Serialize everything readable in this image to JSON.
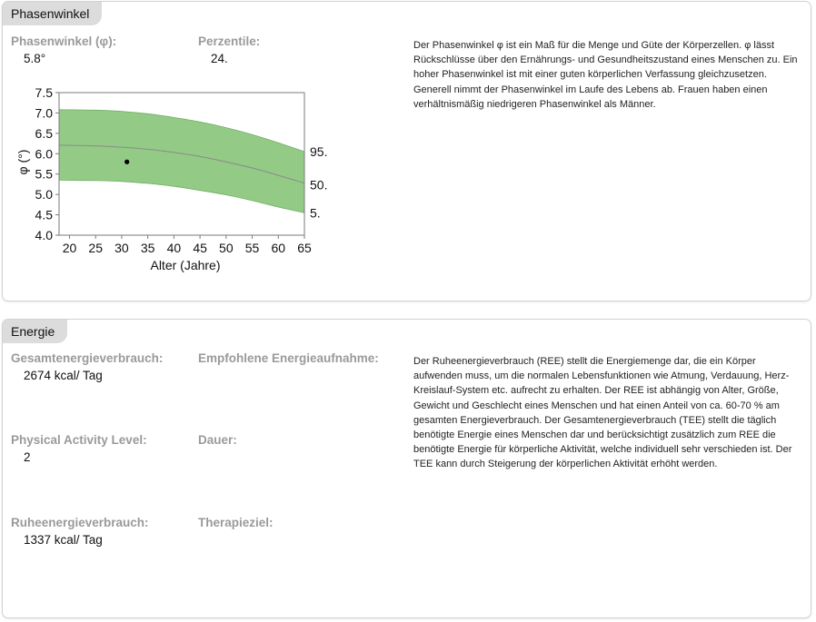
{
  "phase": {
    "title": "Phasenwinkel",
    "angle_label": "Phasenwinkel (φ):",
    "angle_value": "5.8°",
    "percentile_label": "Perzentile:",
    "percentile_value": "24.",
    "description": "Der Phasenwinkel φ ist ein Maß für die Menge und Güte der Körperzellen. φ lässt Rückschlüsse über den Ernährungs- und Gesundheitszustand eines Menschen zu. Ein hoher Phasenwinkel ist mit einer guten körperlichen Verfassung gleichzusetzen. Generell nimmt der Phasenwinkel im Laufe des Lebens ab. Frauen haben einen verhältnismäßig niedrigeren Phasenwinkel als Männer."
  },
  "chart_data": {
    "type": "area",
    "title": "",
    "xlabel": "Alter (Jahre)",
    "ylabel": "φ (°)",
    "xlim": [
      18,
      65
    ],
    "ylim": [
      4.0,
      7.5
    ],
    "xticks": [
      20,
      25,
      30,
      35,
      40,
      45,
      50,
      55,
      60,
      65
    ],
    "yticks": [
      4.0,
      4.5,
      5.0,
      5.5,
      6.0,
      6.5,
      7.0,
      7.5
    ],
    "x": [
      18,
      25,
      30,
      35,
      40,
      45,
      50,
      55,
      60,
      65
    ],
    "series": [
      {
        "name": "95.",
        "values": [
          7.08,
          7.07,
          7.04,
          6.98,
          6.89,
          6.78,
          6.64,
          6.47,
          6.27,
          6.05
        ]
      },
      {
        "name": "50.",
        "values": [
          6.21,
          6.19,
          6.16,
          6.11,
          6.03,
          5.93,
          5.8,
          5.65,
          5.47,
          5.28
        ]
      },
      {
        "name": "5.",
        "values": [
          5.35,
          5.34,
          5.32,
          5.27,
          5.2,
          5.1,
          4.99,
          4.85,
          4.69,
          4.55
        ]
      }
    ],
    "point": {
      "x": 31,
      "y": 5.8
    },
    "grid": false,
    "colors": {
      "band": "#93cb86",
      "line": "#8a8a8a",
      "point": "#000000",
      "axis": "#7a7a7a"
    }
  },
  "energy": {
    "title": "Energie",
    "total_label": "Gesamtenergieverbrauch:",
    "total_value": "2674 kcal/ Tag",
    "recommended_label": "Empfohlene Energieaufnahme:",
    "pal_label": "Physical Activity Level:",
    "pal_value": "2",
    "duration_label": "Dauer:",
    "ree_label": "Ruheenergieverbrauch:",
    "ree_value": "1337 kcal/ Tag",
    "therapy_label": "Therapieziel:",
    "description": "Der Ruheenergieverbrauch (REE) stellt die Energiemenge dar, die ein Körper aufwenden muss, um die normalen Lebensfunktionen wie Atmung, Verdauung, Herz-Kreislauf-System etc. aufrecht zu erhalten. Der REE ist abhängig von Alter, Größe, Gewicht und Geschlecht eines Menschen und hat einen Anteil von ca. 60-70 % am gesamten Energieverbrauch. Der Gesamtenergieverbrauch (TEE) stellt die täglich benötigte Energie eines Menschen dar und berücksichtigt zusätzlich zum REE die benötigte Energie für körperliche Aktivität, welche individuell sehr verschieden ist. Der TEE kann durch Steigerung der körperlichen Aktivität erhöht werden."
  }
}
